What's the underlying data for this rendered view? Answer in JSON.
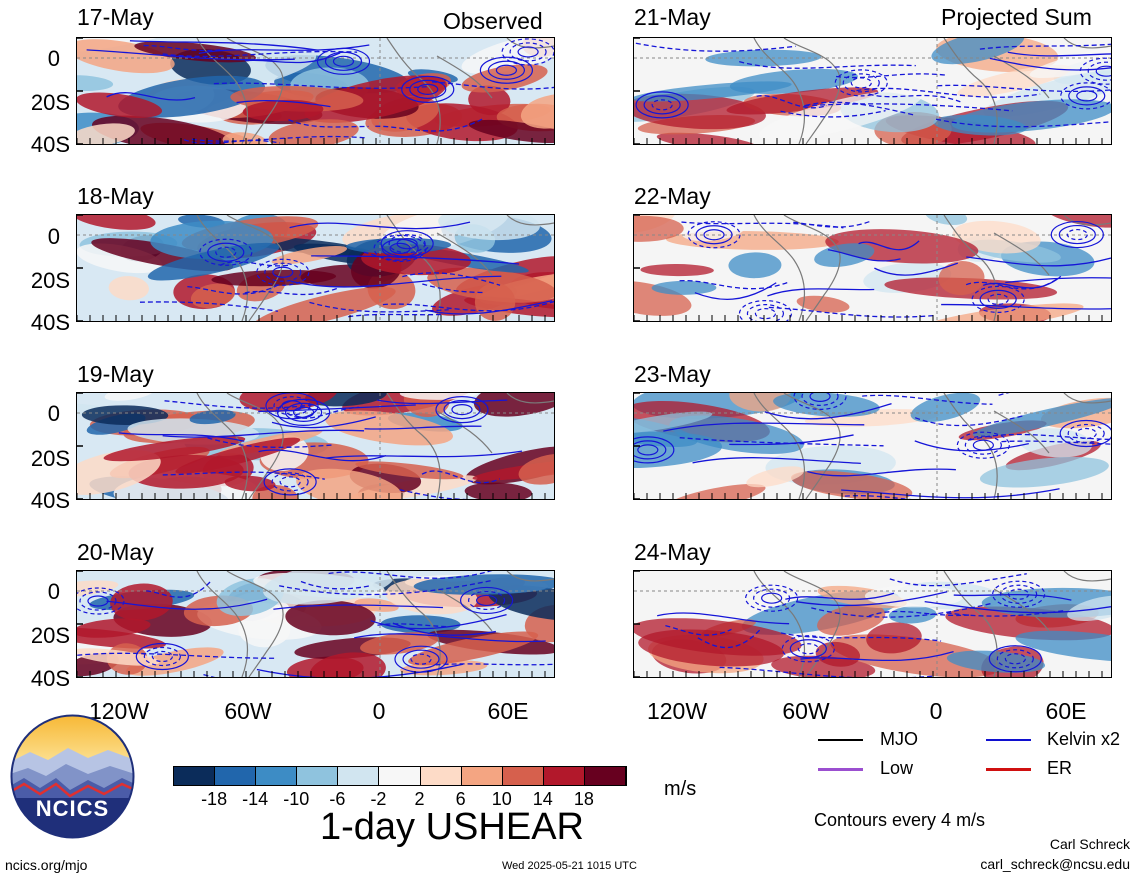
{
  "headers": {
    "observed": "Observed",
    "projected": "Projected Sum"
  },
  "dates_left": [
    "17-May",
    "18-May",
    "19-May",
    "20-May"
  ],
  "dates_right": [
    "21-May",
    "22-May",
    "23-May",
    "24-May"
  ],
  "lat_labels": [
    "0",
    "20S",
    "40S"
  ],
  "lon_labels": [
    "120W",
    "60W",
    "0",
    "60E"
  ],
  "colorbar": {
    "colors": [
      "#0b2c5a",
      "#2166ac",
      "#3d8cc5",
      "#8fc3de",
      "#d1e5f0",
      "#f7f7f7",
      "#fddbc7",
      "#f4a582",
      "#d6604d",
      "#b2182b",
      "#67001f"
    ],
    "labels": [
      "-18",
      "-14",
      "-10",
      "-6",
      "-2",
      "2",
      "6",
      "10",
      "14",
      "18"
    ],
    "units": "m/s"
  },
  "title": "1-day USHEAR",
  "legend": {
    "items": [
      {
        "label": "MJO",
        "color": "#000000"
      },
      {
        "label": "Kelvin x2",
        "color": "#1010d0"
      },
      {
        "label": "Low",
        "color": "#9b4fd0"
      },
      {
        "label": "ER",
        "color": "#d01010"
      }
    ],
    "contour_note": "Contours every 4 m/s"
  },
  "footer": {
    "logo_text": "NCICS",
    "url": "ncics.org/mjo",
    "timestamp": "Wed 2025-05-21 1015 UTC",
    "author": "Carl Schreck",
    "email": "carl_schreck@ncsu.edu"
  }
}
